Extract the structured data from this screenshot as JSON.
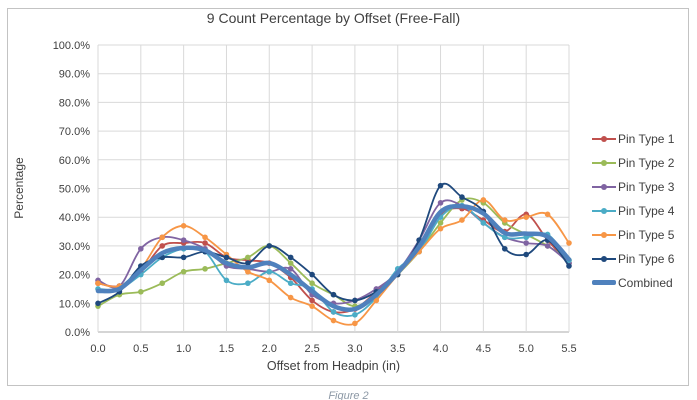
{
  "figure": {
    "caption": "Figure 2"
  },
  "colors": {
    "grid": "#D9D9D9",
    "axis": "#ABABAB",
    "text": "#404040",
    "frame": "#C3C3C3",
    "caption": "#8D99A6"
  },
  "chart_data": {
    "type": "line",
    "title": "9 Count Percentage by Offset (Free-Fall)",
    "xlabel": "Offset from Headpin (in)",
    "ylabel": "Percentage",
    "xlim": [
      0,
      5.5
    ],
    "ylim": [
      0,
      100
    ],
    "grid": true,
    "legend_position": "right",
    "x_ticks": [
      "0.0",
      "0.5",
      "1.0",
      "1.5",
      "2.0",
      "2.5",
      "3.0",
      "3.5",
      "4.0",
      "4.5",
      "5.0",
      "5.5"
    ],
    "y_ticks": [
      "0.0%",
      "10.0%",
      "20.0%",
      "30.0%",
      "40.0%",
      "50.0%",
      "60.0%",
      "70.0%",
      "80.0%",
      "90.0%",
      "100.0%"
    ],
    "x": [
      0,
      0.25,
      0.5,
      0.75,
      1,
      1.25,
      1.5,
      1.75,
      2,
      2.25,
      2.5,
      2.75,
      3,
      3.25,
      3.5,
      3.75,
      4,
      4.25,
      4.5,
      4.75,
      5,
      5.25,
      5.5
    ],
    "y_unit": "percent",
    "series": [
      {
        "name": "Pin Type 1",
        "color": "#C0504D",
        "line_width": 1.8,
        "markers": true,
        "values": [
          17,
          16,
          21,
          30,
          31,
          31,
          26,
          25,
          24,
          19,
          11,
          7,
          8,
          14,
          21,
          30,
          41,
          43,
          39,
          35,
          41,
          32,
          24
        ]
      },
      {
        "name": "Pin Type 2",
        "color": "#9BBB59",
        "line_width": 1.8,
        "markers": true,
        "values": [
          9,
          13,
          14,
          17,
          21,
          22,
          24,
          26,
          30,
          24,
          17,
          13,
          9,
          13,
          20,
          28,
          38,
          46,
          45,
          38,
          34,
          30,
          25
        ]
      },
      {
        "name": "Pin Type 3",
        "color": "#8064A2",
        "line_width": 1.8,
        "markers": true,
        "values": [
          18,
          16,
          29,
          33,
          32,
          29,
          23,
          22,
          21,
          22,
          13,
          10,
          11,
          15,
          21,
          32,
          45,
          44,
          38,
          33,
          31,
          30,
          24
        ]
      },
      {
        "name": "Pin Type 4",
        "color": "#4BACC6",
        "line_width": 1.8,
        "markers": true,
        "values": [
          15,
          15,
          20,
          26,
          29,
          28,
          18,
          17,
          21,
          17,
          15,
          7,
          6,
          12,
          22,
          28,
          40,
          44,
          38,
          33,
          33,
          34,
          25
        ]
      },
      {
        "name": "Pin Type 5",
        "color": "#F79646",
        "line_width": 1.8,
        "markers": true,
        "values": [
          17,
          16,
          22,
          33,
          37,
          33,
          27,
          21,
          18,
          12,
          9,
          4,
          3,
          11,
          20,
          28,
          36,
          39,
          46,
          39,
          40,
          41,
          31
        ]
      },
      {
        "name": "Pin Type 6",
        "color": "#1F497D",
        "line_width": 1.8,
        "markers": true,
        "values": [
          10,
          14,
          23,
          26,
          26,
          28,
          26,
          24,
          30,
          26,
          20,
          13,
          11,
          14,
          20,
          32,
          51,
          47,
          42,
          29,
          27,
          32,
          23
        ]
      },
      {
        "name": "Combined",
        "color": "#4F81BD",
        "line_width": 4.5,
        "markers": false,
        "values": [
          14.3,
          15,
          21.5,
          27.5,
          29.3,
          28.5,
          24,
          22.5,
          24,
          20,
          14.2,
          9,
          8,
          13,
          20.7,
          29.7,
          41.8,
          43.8,
          41.3,
          34.5,
          34.3,
          33.2,
          25.3
        ]
      }
    ]
  }
}
